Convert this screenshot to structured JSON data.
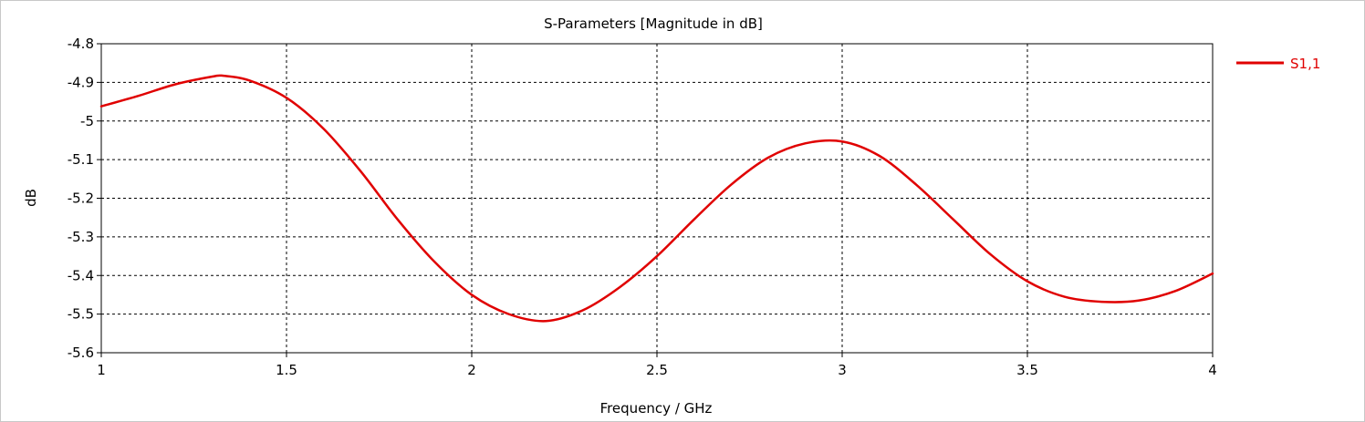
{
  "chart_data": {
    "type": "line",
    "title": "S-Parameters [Magnitude in dB]",
    "xlabel": "Frequency / GHz",
    "ylabel": "dB",
    "xlim": [
      1,
      4
    ],
    "ylim": [
      -5.6,
      -4.8
    ],
    "xticks": [
      1,
      1.5,
      2,
      2.5,
      3,
      3.5,
      4
    ],
    "xtick_labels": [
      "1",
      "1.5",
      "2",
      "2.5",
      "3",
      "3.5",
      "4"
    ],
    "yticks": [
      -4.8,
      -4.9,
      -5.0,
      -5.1,
      -5.2,
      -5.3,
      -5.4,
      -5.5,
      -5.6
    ],
    "ytick_labels": [
      "-4.8",
      "-4.9",
      "-5",
      "-5.1",
      "-5.2",
      "-5.3",
      "-5.4",
      "-5.5",
      "-5.6"
    ],
    "grid": true,
    "legend_position": "top-right",
    "series": [
      {
        "name": "S1,1",
        "color": "#e00000",
        "x": [
          1.0,
          1.1,
          1.2,
          1.3,
          1.33,
          1.4,
          1.5,
          1.6,
          1.7,
          1.8,
          1.9,
          2.0,
          2.1,
          2.2,
          2.3,
          2.4,
          2.5,
          2.6,
          2.7,
          2.8,
          2.9,
          3.0,
          3.1,
          3.2,
          3.3,
          3.4,
          3.5,
          3.6,
          3.7,
          3.8,
          3.9,
          4.0
        ],
        "y": [
          -4.962,
          -4.935,
          -4.905,
          -4.885,
          -4.883,
          -4.895,
          -4.94,
          -5.02,
          -5.13,
          -5.255,
          -5.365,
          -5.45,
          -5.5,
          -5.518,
          -5.49,
          -5.43,
          -5.35,
          -5.255,
          -5.165,
          -5.095,
          -5.058,
          -5.053,
          -5.09,
          -5.165,
          -5.255,
          -5.345,
          -5.415,
          -5.455,
          -5.468,
          -5.465,
          -5.44,
          -5.395
        ]
      }
    ]
  }
}
